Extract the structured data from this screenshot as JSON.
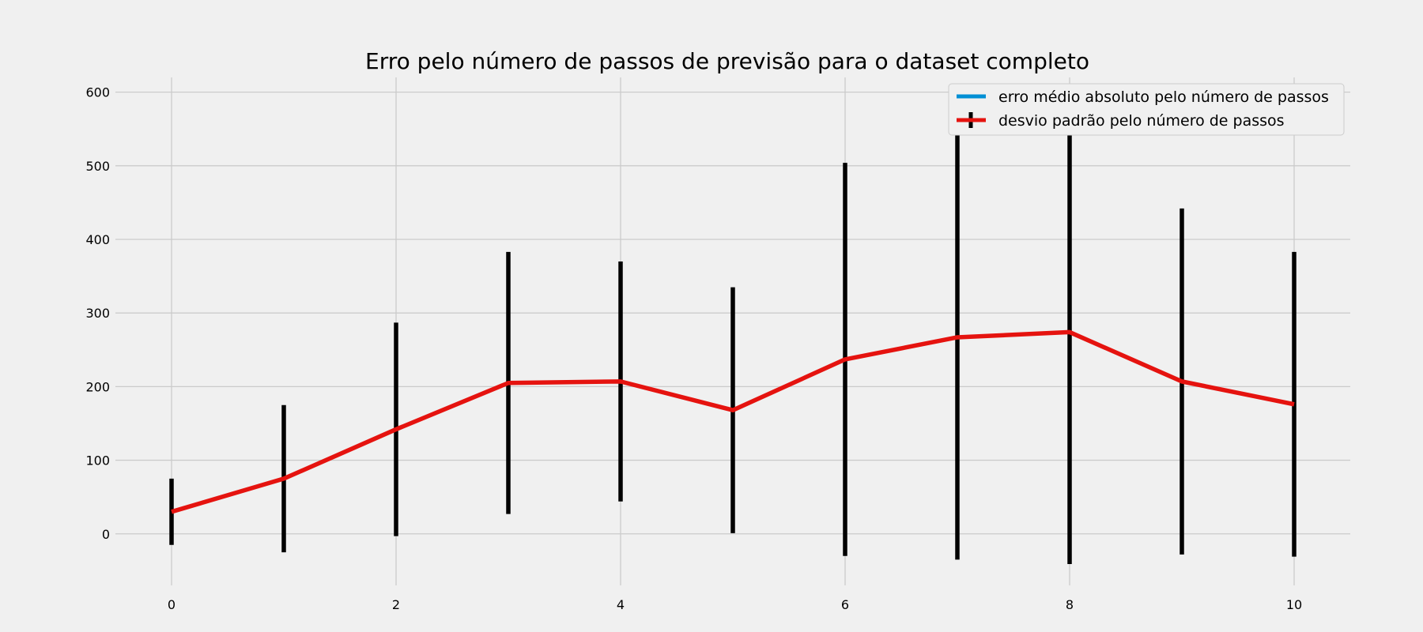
{
  "chart_data": {
    "type": "line",
    "title": "Erro pelo número de passos de previsão para o dataset completo",
    "xlabel": "",
    "ylabel": "",
    "xlim": [
      -0.5,
      10.5
    ],
    "ylim": [
      -70,
      620
    ],
    "x": [
      0,
      1,
      2,
      3,
      4,
      5,
      6,
      7,
      8,
      9,
      10
    ],
    "x_ticks": [
      0,
      2,
      4,
      6,
      8,
      10
    ],
    "y_ticks": [
      0,
      100,
      200,
      300,
      400,
      500,
      600
    ],
    "grid": true,
    "legend_position": "top-right",
    "series": [
      {
        "name": "erro médio absoluto pelo número de passos",
        "color": "#008fd5",
        "style": "line",
        "values": [
          30,
          75,
          142,
          205,
          207,
          168,
          237,
          267,
          274,
          207,
          176
        ]
      },
      {
        "name": "desvio padrão pelo número de passos",
        "color": "#e5130f",
        "errorbar_color": "#000000",
        "style": "errorbar",
        "values": [
          30,
          75,
          142,
          205,
          207,
          168,
          237,
          267,
          274,
          207,
          176
        ],
        "error": [
          45,
          100,
          145,
          178,
          163,
          167,
          267,
          302,
          315,
          235,
          207
        ]
      }
    ]
  }
}
